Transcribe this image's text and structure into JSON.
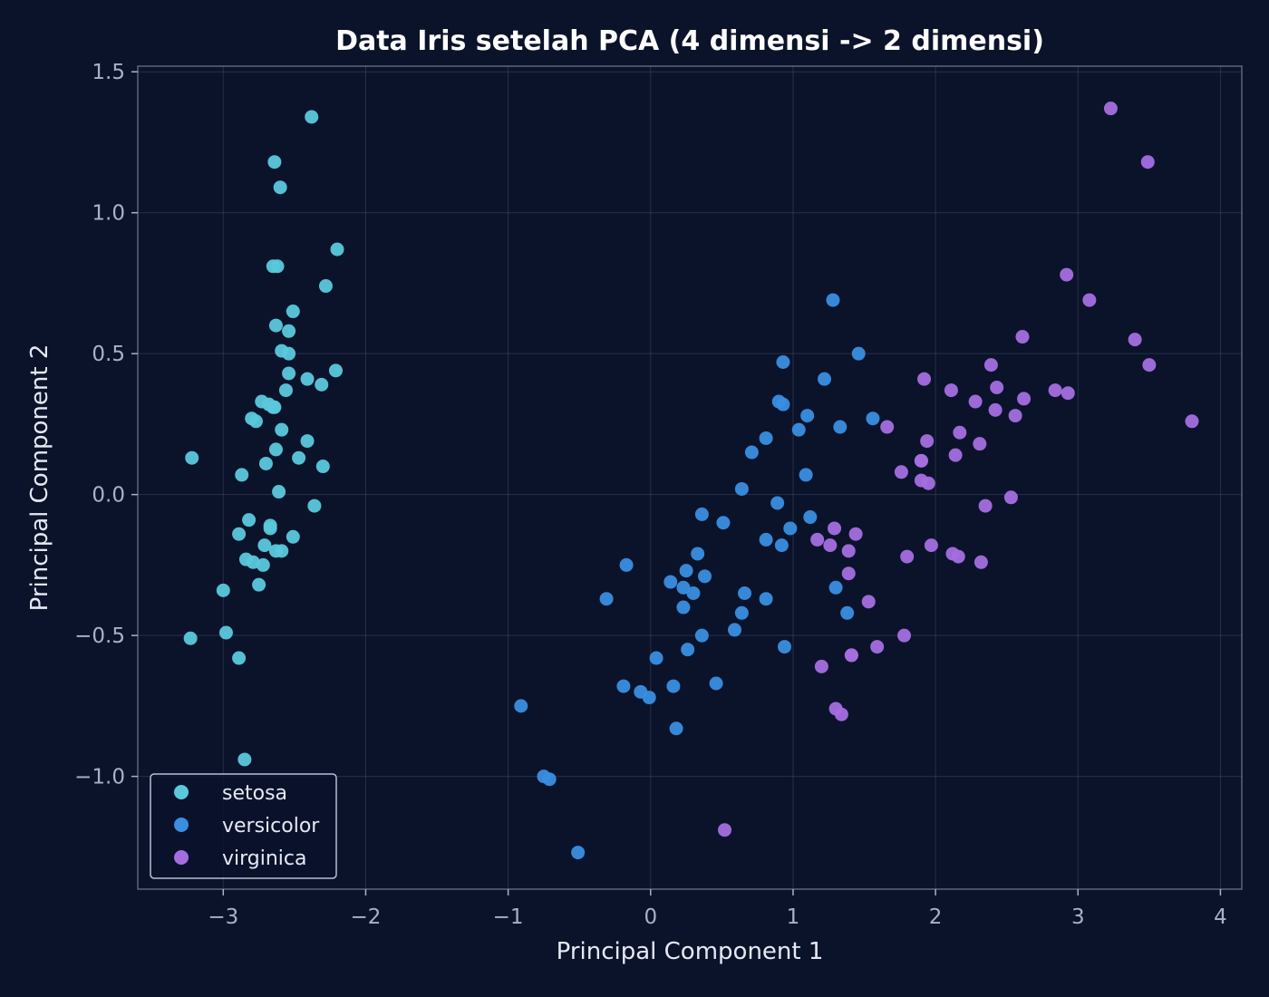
{
  "chart_data": {
    "type": "scatter",
    "title": "Data Iris setelah PCA (4 dimensi -> 2 dimensi)",
    "xlabel": "Principal Component 1",
    "ylabel": "Principal Component 2",
    "xlim": [
      -3.6,
      4.15
    ],
    "ylim": [
      -1.4,
      1.52
    ],
    "xticks": [
      -3,
      -2,
      -1,
      0,
      1,
      2,
      3,
      4
    ],
    "xtick_labels": [
      "−3",
      "−2",
      "−1",
      "0",
      "1",
      "2",
      "3",
      "4"
    ],
    "yticks": [
      -1.0,
      -0.5,
      0.0,
      0.5,
      1.0,
      1.5
    ],
    "ytick_labels": [
      "−1.0",
      "−0.5",
      "0.0",
      "0.5",
      "1.0",
      "1.5"
    ],
    "grid": true,
    "legend_position": "lower-left",
    "series": [
      {
        "name": "setosa",
        "color": "#5bc8dc",
        "points": [
          [
            -2.68,
            0.32
          ],
          [
            -2.71,
            -0.18
          ],
          [
            -2.89,
            -0.14
          ],
          [
            -2.75,
            -0.32
          ],
          [
            -2.73,
            0.33
          ],
          [
            -2.28,
            0.74
          ],
          [
            -2.82,
            -0.09
          ],
          [
            -2.63,
            0.16
          ],
          [
            -2.89,
            -0.58
          ],
          [
            -2.67,
            -0.11
          ],
          [
            -2.51,
            0.65
          ],
          [
            -2.61,
            0.01
          ],
          [
            -2.79,
            -0.24
          ],
          [
            -3.23,
            -0.51
          ],
          [
            -2.64,
            1.18
          ],
          [
            -2.38,
            1.34
          ],
          [
            -2.62,
            0.81
          ],
          [
            -2.65,
            0.31
          ],
          [
            -2.2,
            0.87
          ],
          [
            -2.59,
            0.51
          ],
          [
            -2.31,
            0.39
          ],
          [
            -2.54,
            0.43
          ],
          [
            -3.22,
            0.13
          ],
          [
            -2.3,
            0.1
          ],
          [
            -2.36,
            -0.04
          ],
          [
            -2.51,
            -0.15
          ],
          [
            -2.47,
            0.13
          ],
          [
            -2.56,
            0.37
          ],
          [
            -2.64,
            0.31
          ],
          [
            -2.63,
            -0.2
          ],
          [
            -2.59,
            -0.2
          ],
          [
            -2.41,
            0.41
          ],
          [
            -2.65,
            0.81
          ],
          [
            -2.6,
            1.09
          ],
          [
            -2.67,
            -0.12
          ],
          [
            -2.87,
            0.07
          ],
          [
            -2.63,
            0.6
          ],
          [
            -2.8,
            0.27
          ],
          [
            -2.98,
            -0.49
          ],
          [
            -2.59,
            0.23
          ],
          [
            -2.77,
            0.26
          ],
          [
            -2.85,
            -0.94
          ],
          [
            -3.0,
            -0.34
          ],
          [
            -2.41,
            0.19
          ],
          [
            -2.21,
            0.44
          ],
          [
            -2.72,
            -0.25
          ],
          [
            -2.54,
            0.5
          ],
          [
            -2.84,
            -0.23
          ],
          [
            -2.54,
            0.58
          ],
          [
            -2.7,
            0.11
          ]
        ]
      },
      {
        "name": "versicolor",
        "color": "#3a8ee0",
        "points": [
          [
            1.28,
            0.69
          ],
          [
            0.93,
            0.32
          ],
          [
            1.46,
            0.5
          ],
          [
            0.18,
            -0.83
          ],
          [
            1.09,
            0.07
          ],
          [
            0.64,
            -0.42
          ],
          [
            1.1,
            0.28
          ],
          [
            -0.75,
            -1.0
          ],
          [
            1.04,
            0.23
          ],
          [
            -0.01,
            -0.72
          ],
          [
            -0.51,
            -1.27
          ],
          [
            0.51,
            -0.1
          ],
          [
            0.26,
            -0.55
          ],
          [
            0.98,
            -0.12
          ],
          [
            -0.17,
            -0.25
          ],
          [
            0.93,
            0.47
          ],
          [
            0.66,
            -0.35
          ],
          [
            0.23,
            -0.33
          ],
          [
            0.94,
            -0.54
          ],
          [
            0.04,
            -0.58
          ],
          [
            1.12,
            -0.08
          ],
          [
            0.36,
            -0.07
          ],
          [
            1.3,
            -0.33
          ],
          [
            0.92,
            -0.18
          ],
          [
            0.71,
            0.15
          ],
          [
            0.9,
            0.33
          ],
          [
            1.33,
            0.24
          ],
          [
            1.56,
            0.27
          ],
          [
            0.81,
            -0.16
          ],
          [
            -0.31,
            -0.37
          ],
          [
            -0.07,
            -0.7
          ],
          [
            -0.19,
            -0.68
          ],
          [
            0.14,
            -0.31
          ],
          [
            1.38,
            -0.42
          ],
          [
            0.59,
            -0.48
          ],
          [
            0.81,
            0.2
          ],
          [
            1.22,
            0.41
          ],
          [
            0.81,
            -0.37
          ],
          [
            0.25,
            -0.27
          ],
          [
            0.16,
            -0.68
          ],
          [
            0.46,
            -0.67
          ],
          [
            0.89,
            -0.03
          ],
          [
            0.23,
            -0.4
          ],
          [
            -0.71,
            -1.01
          ],
          [
            0.36,
            -0.5
          ],
          [
            0.33,
            -0.21
          ],
          [
            0.38,
            -0.29
          ],
          [
            0.64,
            0.02
          ],
          [
            -0.91,
            -0.75
          ],
          [
            0.3,
            -0.35
          ]
        ]
      },
      {
        "name": "virginica",
        "color": "#a56ee0",
        "points": [
          [
            2.53,
            -0.01
          ],
          [
            1.41,
            -0.57
          ],
          [
            2.62,
            0.34
          ],
          [
            1.97,
            -0.18
          ],
          [
            2.35,
            -0.04
          ],
          [
            3.4,
            0.55
          ],
          [
            0.52,
            -1.19
          ],
          [
            2.93,
            0.36
          ],
          [
            2.32,
            -0.24
          ],
          [
            2.92,
            0.78
          ],
          [
            1.66,
            0.24
          ],
          [
            1.8,
            -0.22
          ],
          [
            2.17,
            0.22
          ],
          [
            1.34,
            -0.78
          ],
          [
            1.59,
            -0.54
          ],
          [
            1.9,
            0.12
          ],
          [
            1.95,
            0.04
          ],
          [
            3.49,
            1.18
          ],
          [
            3.8,
            0.26
          ],
          [
            1.3,
            -0.76
          ],
          [
            2.43,
            0.38
          ],
          [
            1.2,
            -0.61
          ],
          [
            3.5,
            0.46
          ],
          [
            1.39,
            -0.2
          ],
          [
            2.28,
            0.33
          ],
          [
            2.61,
            0.56
          ],
          [
            1.26,
            -0.18
          ],
          [
            1.29,
            -0.12
          ],
          [
            2.12,
            -0.21
          ],
          [
            2.39,
            0.46
          ],
          [
            2.84,
            0.37
          ],
          [
            3.23,
            1.37
          ],
          [
            2.16,
            -0.22
          ],
          [
            1.44,
            -0.14
          ],
          [
            1.78,
            -0.5
          ],
          [
            3.08,
            0.69
          ],
          [
            2.14,
            0.14
          ],
          [
            1.9,
            0.05
          ],
          [
            1.17,
            -0.16
          ],
          [
            2.11,
            0.37
          ],
          [
            2.31,
            0.18
          ],
          [
            1.92,
            0.41
          ],
          [
            1.41,
            -0.57
          ],
          [
            2.56,
            0.28
          ],
          [
            2.42,
            0.3
          ],
          [
            1.94,
            0.19
          ],
          [
            1.53,
            -0.38
          ],
          [
            1.76,
            0.08
          ],
          [
            1.9,
            0.12
          ],
          [
            1.39,
            -0.28
          ]
        ]
      }
    ]
  }
}
